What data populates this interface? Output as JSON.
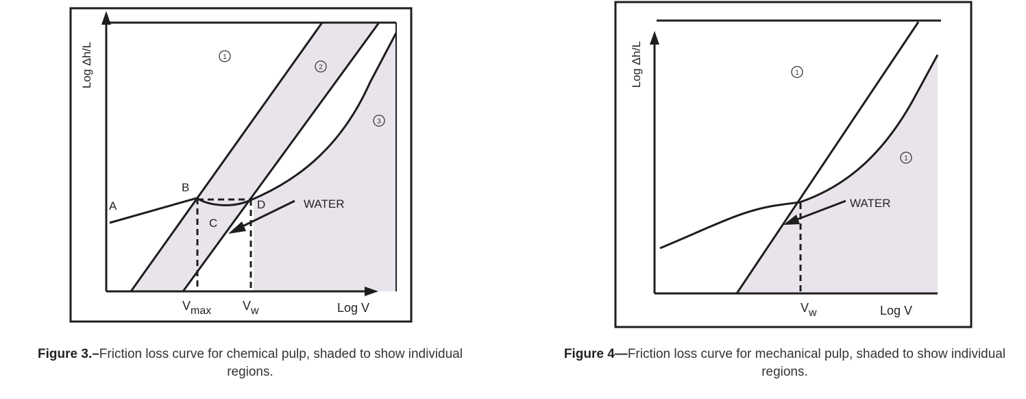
{
  "figure3": {
    "y_axis_label": "Log Δh/L",
    "x_axis_label": "Log V",
    "tick_vmax": "V",
    "tick_vmax_sub": "max",
    "tick_vw": "V",
    "tick_vw_sub": "w",
    "point_a": "A",
    "point_b": "B",
    "point_c": "C",
    "point_d": "D",
    "water_label": "WATER",
    "region_1": "1",
    "region_2": "2",
    "region_3": "3",
    "caption_lead": "Figure 3.–",
    "caption_text": "Friction loss curve for chemical pulp, shaded to show individual regions."
  },
  "figure4": {
    "y_axis_label": "Log Δh/L",
    "x_axis_label": "Log V",
    "tick_vw": "V",
    "tick_vw_sub": "w",
    "water_label": "WATER",
    "region_1_top": "1",
    "region_1_right": "1",
    "caption_lead": "Figure 4—",
    "caption_text": "Friction loss curve for mechanical pulp, shaded to show individual regions."
  },
  "colors": {
    "shade": "#e9e4ec",
    "ink": "#1e1e1e"
  }
}
